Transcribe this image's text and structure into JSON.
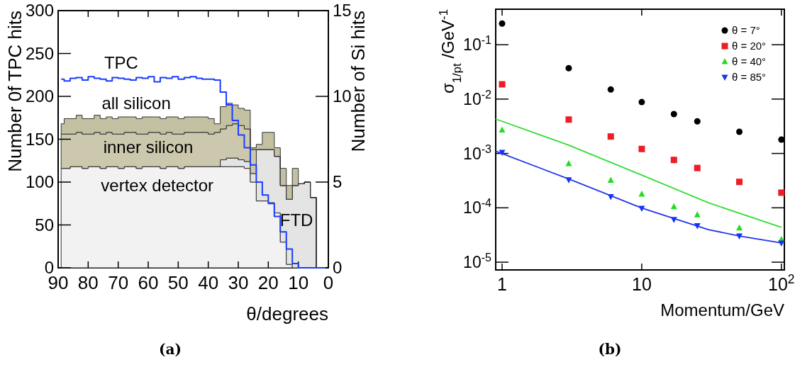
{
  "chart_data": [
    {
      "type": "area",
      "xlabel": "θ/degrees",
      "ylabel": "Number 0f TPC hits",
      "y2label": "Number of Si hits",
      "xlim": [
        90,
        0
      ],
      "xticks": [
        90,
        80,
        70,
        60,
        50,
        40,
        30,
        20,
        10,
        0
      ],
      "ylim": [
        0,
        300
      ],
      "yticks": [
        0,
        50,
        100,
        150,
        200,
        250,
        300
      ],
      "y2lim": [
        0,
        15
      ],
      "y2ticks": [
        0,
        5,
        10,
        15
      ],
      "stacked": true,
      "x": [
        89,
        87,
        85,
        83,
        81,
        79,
        77,
        75,
        73,
        71,
        69,
        67,
        65,
        63,
        61,
        59,
        57,
        55,
        53,
        51,
        49,
        47,
        45,
        43,
        41,
        39,
        37,
        35,
        33,
        31,
        29,
        27,
        25,
        23,
        21,
        19,
        17,
        15,
        13,
        11,
        9,
        7,
        5,
        3,
        1
      ],
      "series": [
        {
          "name": "vertex detector",
          "axis": "y2",
          "color": "#f2f2f2",
          "values": [
            5.8,
            5.8,
            5.9,
            5.9,
            5.8,
            5.9,
            5.9,
            5.8,
            5.9,
            5.9,
            5.8,
            5.9,
            5.9,
            5.8,
            5.9,
            5.9,
            5.9,
            5.8,
            5.9,
            5.9,
            5.8,
            5.9,
            5.9,
            5.9,
            5.9,
            5.9,
            5.9,
            5.9,
            5.9,
            5.9,
            5.9,
            5.8,
            5.0,
            3.9,
            3.9,
            3.8,
            3.2,
            1.5,
            0.2,
            0,
            0,
            0,
            0,
            0,
            0
          ]
        },
        {
          "name": "FTD",
          "axis": "y2",
          "color": "#e4e4e4",
          "values": [
            0,
            0,
            0,
            0,
            0,
            0,
            0,
            0,
            0,
            0,
            0,
            0,
            0,
            0,
            0,
            0,
            0,
            0,
            0,
            0,
            0,
            0,
            0,
            0,
            0,
            0,
            0,
            0.4,
            0.5,
            0.5,
            0.4,
            0.4,
            0.5,
            3.0,
            3.0,
            3.1,
            3.3,
            3.3,
            3.8,
            4.8,
            4.9,
            5.0,
            4.1,
            0,
            0
          ]
        },
        {
          "name": "inner silicon",
          "axis": "y2",
          "color": "#ccc8ad",
          "values": [
            2.0,
            2.0,
            1.9,
            2.0,
            2.0,
            1.9,
            2.0,
            2.0,
            2.0,
            1.9,
            2.0,
            2.0,
            2.0,
            2.0,
            1.9,
            2.0,
            2.0,
            2.0,
            2.0,
            1.9,
            2.0,
            2.0,
            2.0,
            2.0,
            2.0,
            1.9,
            2.0,
            1.8,
            1.9,
            2.0,
            2.0,
            1.9,
            1.4,
            0,
            0,
            0,
            0,
            0,
            0,
            0,
            0,
            0,
            0,
            0,
            0
          ]
        },
        {
          "name": "all silicon",
          "axis": "y2",
          "color": "#c4c0a2",
          "values": [
            0.6,
            0.9,
            0.9,
            1.0,
            0.9,
            0.9,
            1.0,
            0.9,
            0.9,
            0.9,
            1.0,
            0.9,
            0.9,
            0.9,
            1.0,
            0.9,
            0.9,
            0.9,
            0.9,
            1.0,
            0.9,
            0.9,
            0.9,
            0.9,
            0.9,
            0.9,
            0.5,
            1.3,
            1.3,
            1.1,
            1.0,
            1.1,
            0.1,
            0.3,
            1.0,
            1.0,
            0.5,
            1.0,
            0.8,
            1.0,
            0,
            0,
            0,
            0,
            0
          ]
        },
        {
          "name": "TPC",
          "type": "step",
          "axis": "y",
          "color": "#1a3cff",
          "values": [
            220,
            218,
            221,
            222,
            219,
            223,
            221,
            220,
            218,
            222,
            221,
            220,
            219,
            222,
            221,
            223,
            217,
            222,
            221,
            223,
            220,
            222,
            223,
            221,
            220,
            220,
            219,
            205,
            190,
            172,
            155,
            140,
            120,
            100,
            85,
            75,
            60,
            42,
            22,
            5,
            0,
            0,
            0,
            0,
            0
          ]
        }
      ],
      "annotations": [
        "(a)"
      ]
    },
    {
      "type": "scatter",
      "xlabel": "Momentum/GeV",
      "ylabel": "σ$_{1/pt}$ /GeV$^{-1}$",
      "log": "xy",
      "xlim": [
        0.9,
        105
      ],
      "xticks": [
        1,
        10,
        {
          "value": 100,
          "label": "10$^{2}$"
        }
      ],
      "ylim": [
        7.2e-06,
        0.45
      ],
      "yticks": [
        {
          "value": 1e-05,
          "label": "10$^{-5}$"
        },
        {
          "value": 0.0001,
          "label": "10$^{-4}$"
        },
        {
          "value": 0.001,
          "label": "10$^{-3}$"
        },
        {
          "value": 0.01,
          "label": "10$^{-2}$"
        },
        {
          "value": 0.1,
          "label": "10$^{-1}$"
        }
      ],
      "legend": "top right",
      "x": [
        1,
        3,
        6,
        10,
        17,
        25,
        50,
        100
      ],
      "series": [
        {
          "name": "θ = 7°",
          "marker": "circle",
          "color": "#000000",
          "values": [
            0.245,
            0.037,
            0.015,
            0.0088,
            0.0053,
            0.0039,
            0.0025,
            0.0018
          ]
        },
        {
          "name": "θ = 20°",
          "marker": "square",
          "color": "#ee1c25",
          "values": [
            0.0187,
            0.0042,
            0.00205,
            0.00121,
            0.00076,
            0.00054,
            0.0003,
            0.00019
          ]
        },
        {
          "name": "θ = 40°",
          "marker": "triangle",
          "color": "#22dd22",
          "values": [
            0.0027,
            0.00065,
            0.00032,
            0.000178,
            0.000105,
            7.4e-05,
            4.27e-05,
            2.61e-05
          ]
        },
        {
          "name": "θ = 85°",
          "marker": "triangle-down",
          "color": "#1133ee",
          "values": [
            0.00105,
            0.000328,
            0.000161,
            9.77e-05,
            6.11e-05,
            4.69e-05,
            3.05e-05,
            2.26e-05
          ]
        },
        {
          "type": "line",
          "color": "#33dd33",
          "x": [
            0.9,
            3,
            10,
            30,
            100
          ],
          "values": [
            0.0043,
            0.00142,
            0.0004,
            0.000124,
            4.37e-05
          ]
        },
        {
          "type": "line",
          "color": "#2233ee",
          "x": [
            0.9,
            3,
            10,
            30,
            50,
            100
          ],
          "values": [
            0.0011,
            0.00034,
            9.92e-05,
            3.98e-05,
            3.03e-05,
            2.26e-05
          ]
        }
      ],
      "annotations": [
        "(b)"
      ]
    }
  ]
}
